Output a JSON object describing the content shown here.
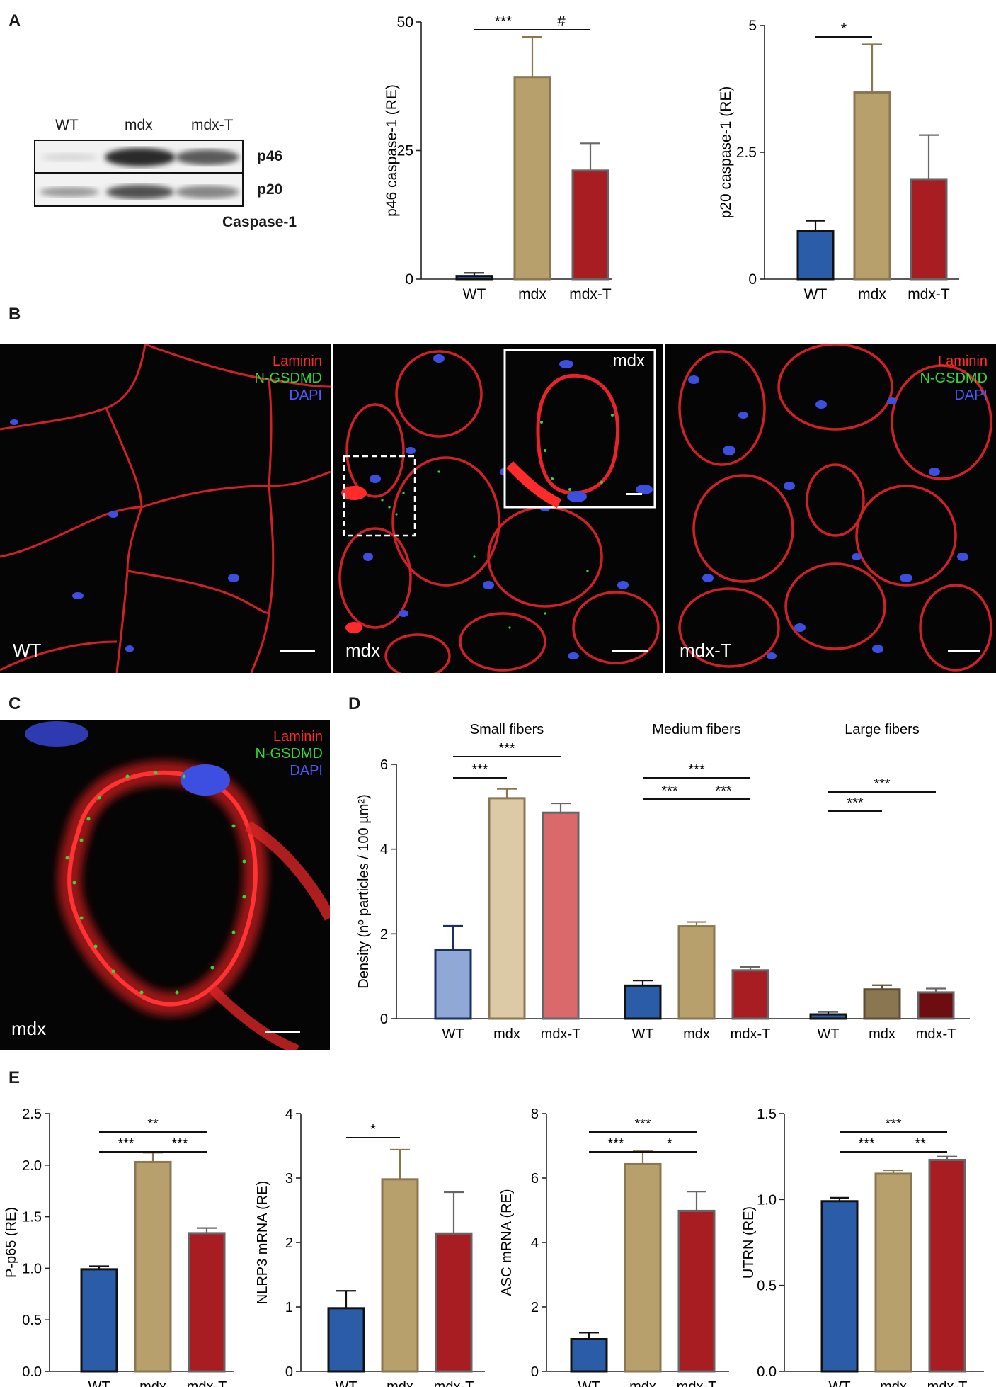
{
  "panels": {
    "a": "A",
    "b": "B",
    "c": "C",
    "d": "D",
    "e": "E"
  },
  "western_blot": {
    "lanes": [
      "WT",
      "mdx",
      "mdx-T"
    ],
    "bands": [
      "p46",
      "p20"
    ],
    "protein": "Caspase-1"
  },
  "colors": {
    "wt": "#2b5ca8",
    "mdx": "#b8a06c",
    "mdxT": "#a71d22",
    "wt_light": "#8fa8d6",
    "mdx_light": "#dccaa6",
    "mdxT_light": "#d9696b",
    "mdx_dark": "#8a7650",
    "mdxT_dark": "#6e0d10",
    "laminin": "#ff2a2a",
    "gsdmd": "#35d63a",
    "dapi": "#4a5cff"
  },
  "micrographs": {
    "legend": [
      "Laminin",
      "N-GSDMD",
      "DAPI"
    ],
    "wt": {
      "label": "WT"
    },
    "mdx": {
      "label": "mdx",
      "inset_label": "mdx"
    },
    "mdxT": {
      "label": "mdx-T"
    },
    "zoom": {
      "label": "mdx"
    }
  },
  "chart_data": [
    {
      "id": "A1",
      "type": "bar",
      "categories": [
        "WT",
        "mdx",
        "mdx-T"
      ],
      "values": [
        0.6,
        39.3,
        21.1
      ],
      "errors": [
        0.6,
        7.8,
        5.3
      ],
      "ylabel": "p46 caspase-1 (RE)",
      "ylim": [
        0,
        50
      ],
      "yticks": [
        "0",
        "25",
        "50"
      ],
      "significance": [
        {
          "from": 0,
          "to": 1,
          "label": "***"
        },
        {
          "from": 1,
          "to": 2,
          "label": "#"
        }
      ]
    },
    {
      "id": "A2",
      "type": "bar",
      "categories": [
        "WT",
        "mdx",
        "mdx-T"
      ],
      "values": [
        0.95,
        3.68,
        1.97
      ],
      "errors": [
        0.2,
        0.95,
        0.87
      ],
      "ylabel": "p20 caspase-1 (RE)",
      "ylim": [
        0,
        5
      ],
      "yticks": [
        "0",
        "2.5",
        "5"
      ],
      "significance": [
        {
          "from": 0,
          "to": 1,
          "label": "*"
        }
      ]
    },
    {
      "id": "D",
      "type": "bar",
      "ylabel": "Density (nº particles  / 100 µm²)",
      "ylim": [
        0,
        6
      ],
      "yticks": [
        "0",
        "2",
        "4",
        "6"
      ],
      "groups": [
        {
          "name": "Small fibers",
          "categories": [
            "WT",
            "mdx",
            "mdx-T"
          ],
          "values": [
            1.62,
            5.2,
            4.86
          ],
          "errors": [
            0.57,
            0.22,
            0.22
          ],
          "significance": [
            {
              "from": 0,
              "to": 1,
              "label": "***"
            },
            {
              "from": 0,
              "to": 2,
              "label": "***"
            }
          ]
        },
        {
          "name": "Medium fibers",
          "categories": [
            "WT",
            "mdx",
            "mdx-T"
          ],
          "values": [
            0.78,
            2.18,
            1.14
          ],
          "errors": [
            0.12,
            0.1,
            0.08
          ],
          "significance": [
            {
              "from": 0,
              "to": 1,
              "label": "***"
            },
            {
              "from": 1,
              "to": 2,
              "label": "***"
            },
            {
              "from": 0,
              "to": 2,
              "label": "***"
            }
          ]
        },
        {
          "name": "Large fibers",
          "categories": [
            "WT",
            "mdx",
            "mdx-T"
          ],
          "values": [
            0.1,
            0.69,
            0.62
          ],
          "errors": [
            0.06,
            0.1,
            0.09
          ],
          "significance": [
            {
              "from": 0,
              "to": 1,
              "label": "***"
            },
            {
              "from": 0,
              "to": 2,
              "label": "***"
            }
          ]
        }
      ]
    },
    {
      "id": "E1",
      "type": "bar",
      "categories": [
        "WT",
        "mdx",
        "mdx-T"
      ],
      "values": [
        0.99,
        2.03,
        1.34
      ],
      "errors": [
        0.03,
        0.09,
        0.05
      ],
      "ylabel": "P-p65 (RE)",
      "ylim": [
        0,
        2.5
      ],
      "yticks": [
        "0.0",
        "0.5",
        "1.0",
        "1.5",
        "2.0",
        "2.5"
      ],
      "significance": [
        {
          "from": 0,
          "to": 1,
          "label": "***"
        },
        {
          "from": 1,
          "to": 2,
          "label": "***"
        },
        {
          "from": 0,
          "to": 2,
          "label": "**"
        }
      ]
    },
    {
      "id": "E2",
      "type": "bar",
      "categories": [
        "WT",
        "mdx",
        "mdx-T"
      ],
      "values": [
        0.98,
        2.98,
        2.14
      ],
      "errors": [
        0.27,
        0.46,
        0.64
      ],
      "ylabel": "NLRP3 mRNA (RE)",
      "ylim": [
        0,
        4
      ],
      "yticks": [
        "0",
        "1",
        "2",
        "3",
        "4"
      ],
      "significance": [
        {
          "from": 0,
          "to": 1,
          "label": "*"
        }
      ]
    },
    {
      "id": "E3",
      "type": "bar",
      "categories": [
        "WT",
        "mdx",
        "mdx-T"
      ],
      "values": [
        1.0,
        6.43,
        4.98
      ],
      "errors": [
        0.2,
        0.4,
        0.6
      ],
      "ylabel": "ASC mRNA (RE)",
      "ylim": [
        0,
        8
      ],
      "yticks": [
        "0",
        "2",
        "4",
        "6",
        "8"
      ],
      "significance": [
        {
          "from": 0,
          "to": 1,
          "label": "***"
        },
        {
          "from": 1,
          "to": 2,
          "label": "*"
        },
        {
          "from": 0,
          "to": 2,
          "label": "***"
        }
      ]
    },
    {
      "id": "E4",
      "type": "bar",
      "categories": [
        "WT",
        "mdx",
        "mdx-T"
      ],
      "values": [
        0.99,
        1.15,
        1.23
      ],
      "errors": [
        0.02,
        0.02,
        0.02
      ],
      "ylabel": "UTRN (RE)",
      "ylim": [
        0,
        1.5
      ],
      "yticks": [
        "0.0",
        "0.5",
        "1.0",
        "1.5"
      ],
      "significance": [
        {
          "from": 0,
          "to": 1,
          "label": "***"
        },
        {
          "from": 1,
          "to": 2,
          "label": "**"
        },
        {
          "from": 0,
          "to": 2,
          "label": "***"
        }
      ]
    }
  ]
}
